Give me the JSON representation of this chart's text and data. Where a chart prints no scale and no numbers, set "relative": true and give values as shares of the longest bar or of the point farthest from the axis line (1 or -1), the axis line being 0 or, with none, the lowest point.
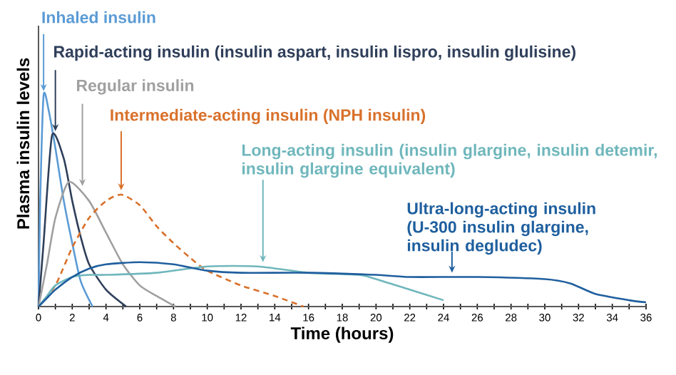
{
  "chart_data": {
    "type": "line",
    "relative": true,
    "xlabel": "Time (hours)",
    "ylabel": "Plasma insulin levels",
    "xlim": [
      0,
      36
    ],
    "xticks": [
      0,
      {
        "value": 1,
        "label": null
      },
      2,
      {
        "value": 3,
        "label": null
      },
      4,
      {
        "value": 5,
        "label": null
      },
      6,
      {
        "value": 7,
        "label": null
      },
      8,
      {
        "value": 9,
        "label": null
      },
      10,
      {
        "value": 11,
        "label": null
      },
      12,
      {
        "value": 13,
        "label": null
      },
      14,
      {
        "value": 15,
        "label": null
      },
      16,
      {
        "value": 17,
        "label": null
      },
      18,
      {
        "value": 19,
        "label": null
      },
      20,
      {
        "value": 21,
        "label": null
      },
      22,
      {
        "value": 23,
        "label": null
      },
      24,
      {
        "value": 25,
        "label": null
      },
      26,
      {
        "value": 27,
        "label": null
      },
      28,
      {
        "value": 29,
        "label": null
      },
      30,
      {
        "value": 31,
        "label": null
      },
      32,
      {
        "value": 33,
        "label": null
      },
      34,
      {
        "value": 35,
        "label": null
      },
      36
    ],
    "marker": "none",
    "grid": false,
    "series": [
      {
        "color": "#5b9bd5",
        "x": [
          0,
          0.1,
          0.3,
          0.6,
          1,
          1.5,
          2,
          2.5,
          3.2
        ],
        "values": [
          0,
          0.5,
          1.0,
          0.93,
          0.75,
          0.5,
          0.3,
          0.12,
          0
        ]
      },
      {
        "color": "#2f3f5a",
        "x": [
          0,
          0.3,
          0.8,
          1.5,
          2,
          2.5,
          3,
          4,
          5.2
        ],
        "values": [
          0,
          0.3,
          0.81,
          0.7,
          0.5,
          0.33,
          0.2,
          0.08,
          0
        ]
      },
      {
        "color": "#a0a0a0",
        "x": [
          0,
          0.5,
          1,
          1.8,
          3,
          4,
          5,
          6,
          7,
          8.1
        ],
        "values": [
          0,
          0.2,
          0.42,
          0.59,
          0.5,
          0.35,
          0.2,
          0.1,
          0.05,
          0
        ]
      },
      {
        "color": "#d9712b",
        "line_style": "dashed",
        "x": [
          0,
          1,
          2,
          3,
          4,
          4.9,
          6,
          7,
          8,
          9,
          10,
          12,
          14,
          15.7
        ],
        "values": [
          0,
          0.1,
          0.28,
          0.42,
          0.5,
          0.53,
          0.48,
          0.38,
          0.3,
          0.23,
          0.17,
          0.1,
          0.05,
          0
        ]
      },
      {
        "color": "#6fb7bc",
        "x": [
          0,
          0.5,
          1,
          2,
          3,
          4,
          7,
          10,
          13,
          16,
          19,
          20,
          22,
          24
        ],
        "values": [
          0,
          0.05,
          0.1,
          0.14,
          0.15,
          0.15,
          0.16,
          0.19,
          0.19,
          0.16,
          0.15,
          0.13,
          0.08,
          0.03
        ]
      },
      {
        "color": "#1f5f9e",
        "x": [
          0,
          0.5,
          1,
          2,
          3,
          4,
          6,
          8,
          10,
          12,
          16,
          20,
          22,
          26,
          30,
          31.5,
          33,
          35,
          36
        ],
        "values": [
          0,
          0.04,
          0.08,
          0.14,
          0.18,
          0.2,
          0.21,
          0.2,
          0.17,
          0.16,
          0.16,
          0.15,
          0.14,
          0.14,
          0.13,
          0.11,
          0.06,
          0.03,
          0.02
        ]
      }
    ],
    "annotations": [
      {
        "text": "Inhaled insulin",
        "x": 0.3,
        "y": 1.0
      },
      {
        "text": "Rapid-acting insulin (insulin aspart, insulin lispro, insulin glulisine)",
        "x": 1,
        "y": 0.81
      },
      {
        "text": "Regular insulin",
        "x": 2.6,
        "y": 0.55
      },
      {
        "text": "Intermediate-acting insulin (NPH insulin)",
        "x": 4.9,
        "y": 0.53
      },
      {
        "text": "Long-acting insulin (insulin glargine, insulin detemir, insulin glargine equivalent)",
        "x": 13.3,
        "y": 0.19
      },
      {
        "text": "Ultra-long-acting insulin (U-300 insulin glargine, insulin degludec)",
        "x": 24.5,
        "y": 0.14
      }
    ]
  }
}
